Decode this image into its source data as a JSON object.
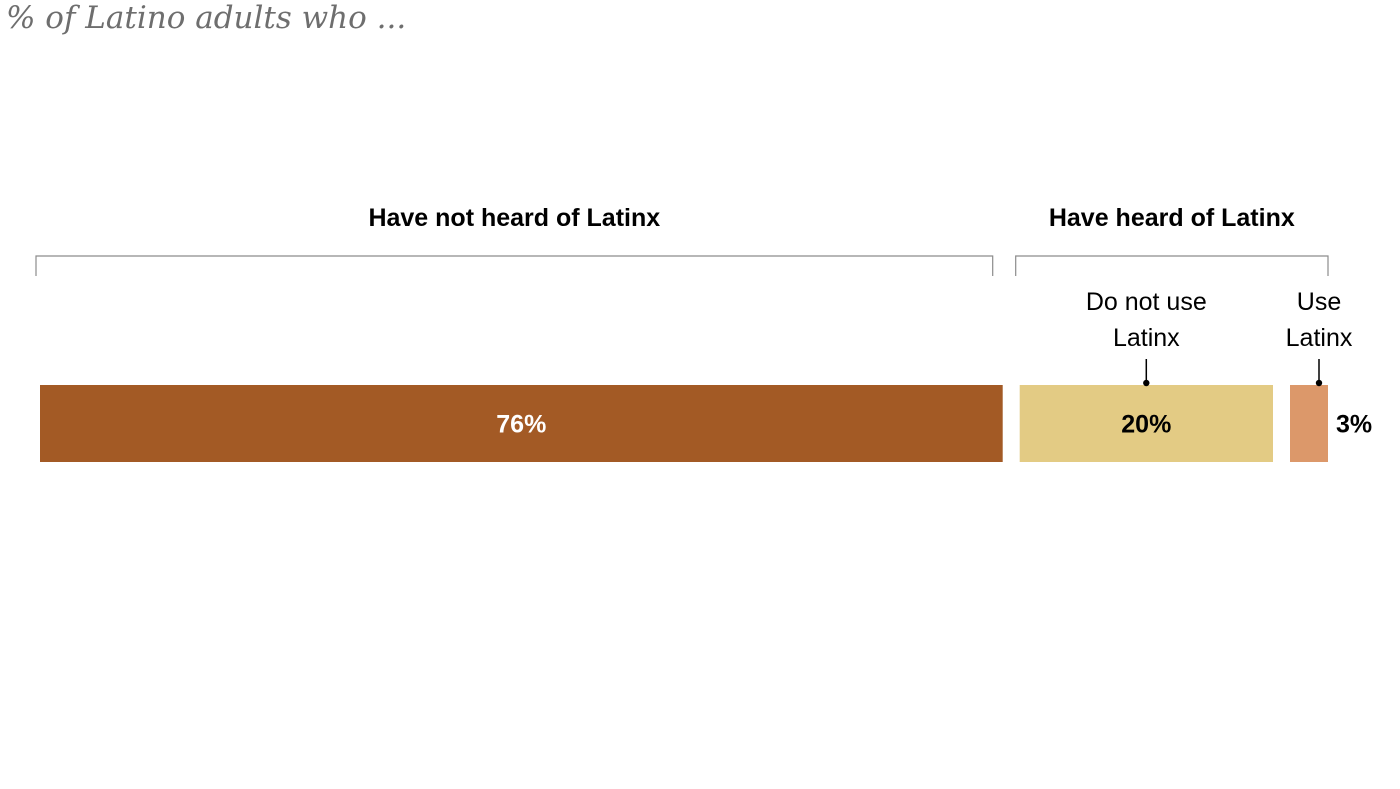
{
  "chart_data": {
    "type": "bar",
    "orientation": "horizontal-stacked",
    "subtitle": "% of Latino adults who ...",
    "groups": [
      {
        "label": "Have not heard of Latinx",
        "segments": [
          0
        ]
      },
      {
        "label": "Have heard of Latinx",
        "segments": [
          1,
          2
        ]
      }
    ],
    "segments": [
      {
        "name": "",
        "value": 76,
        "value_label": "76%",
        "color": "#a35a25",
        "label_color": "#ffffff"
      },
      {
        "name": "Do not use Latinx",
        "name_lines": [
          "Do not use",
          "Latinx"
        ],
        "value": 20,
        "value_label": "20%",
        "color": "#e3cb84",
        "label_color": "#000000"
      },
      {
        "name": "Use Latinx",
        "name_lines": [
          "Use",
          "Latinx"
        ],
        "value": 3,
        "value_label": "3%",
        "color": "#dc986a",
        "label_color": "#000000"
      }
    ],
    "xlim": [
      0,
      100
    ],
    "grid": false,
    "legend": "none"
  }
}
